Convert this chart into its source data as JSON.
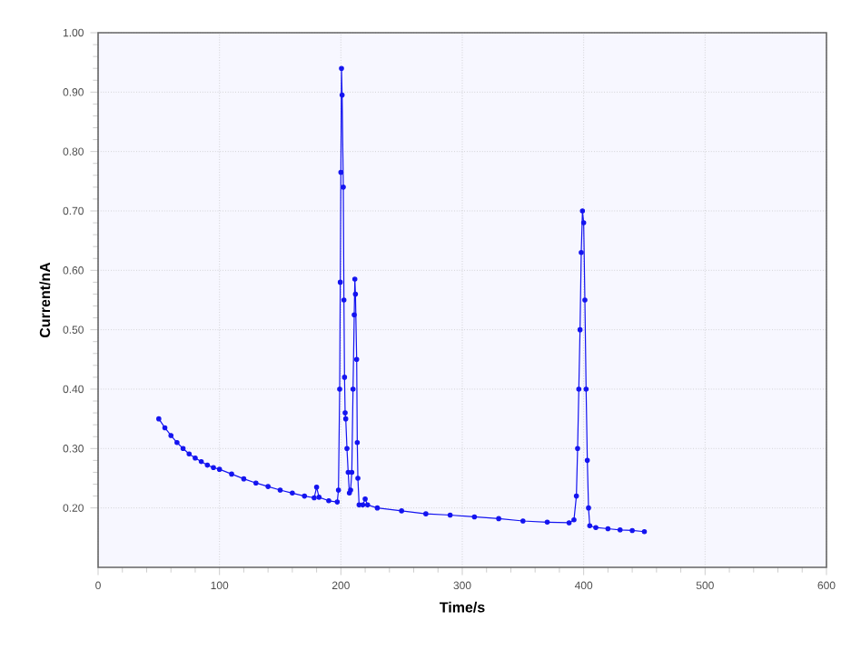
{
  "chart_data": {
    "type": "line",
    "xlabel": "Time/s",
    "ylabel": "Current/nA",
    "xlim": [
      0,
      600
    ],
    "xticks": [
      0,
      100,
      200,
      300,
      400,
      500,
      600
    ],
    "ylim": [
      0.1,
      1.0
    ],
    "yticks": [
      {
        "value": 0.2,
        "label": "0.20"
      },
      {
        "value": 0.3,
        "label": "0.30"
      },
      {
        "value": 0.4,
        "label": "0.40"
      },
      {
        "value": 0.5,
        "label": "0.50"
      },
      {
        "value": 0.6,
        "label": "0.60"
      },
      {
        "value": 0.7,
        "label": "0.70"
      },
      {
        "value": 0.8,
        "label": "0.80"
      },
      {
        "value": 0.9,
        "label": "0.90"
      },
      {
        "value": 1.0,
        "label": "1.00"
      }
    ],
    "grid": true,
    "marker": "circle",
    "line_style": "solid",
    "series": [
      {
        "color": "#1414f0",
        "x": [
          50,
          55,
          60,
          65,
          70,
          75,
          80,
          85,
          90,
          95,
          100,
          110,
          120,
          130,
          140,
          150,
          160,
          170,
          178,
          180,
          182,
          190,
          197,
          198,
          199,
          199.5,
          200,
          200.5,
          201,
          202,
          202.5,
          203,
          203.5,
          204,
          205,
          206,
          207,
          208,
          209,
          210,
          211,
          211.5,
          212,
          213,
          213.5,
          214,
          215,
          218,
          220,
          222,
          230,
          250,
          270,
          290,
          310,
          330,
          350,
          370,
          388,
          392,
          394,
          395,
          396,
          397,
          398,
          399,
          400,
          401,
          402,
          403,
          404,
          405,
          410,
          420,
          430,
          440,
          450
        ],
        "values": [
          0.35,
          0.335,
          0.322,
          0.31,
          0.3,
          0.291,
          0.284,
          0.278,
          0.272,
          0.268,
          0.265,
          0.257,
          0.249,
          0.242,
          0.236,
          0.23,
          0.225,
          0.22,
          0.217,
          0.235,
          0.218,
          0.212,
          0.21,
          0.23,
          0.4,
          0.58,
          0.765,
          0.94,
          0.895,
          0.74,
          0.55,
          0.42,
          0.36,
          0.35,
          0.3,
          0.26,
          0.225,
          0.23,
          0.26,
          0.4,
          0.525,
          0.585,
          0.56,
          0.45,
          0.31,
          0.25,
          0.205,
          0.205,
          0.215,
          0.205,
          0.2,
          0.195,
          0.19,
          0.188,
          0.185,
          0.182,
          0.178,
          0.176,
          0.175,
          0.18,
          0.22,
          0.3,
          0.4,
          0.5,
          0.63,
          0.7,
          0.68,
          0.55,
          0.4,
          0.28,
          0.2,
          0.17,
          0.167,
          0.165,
          0.163,
          0.162,
          0.16
        ]
      }
    ]
  }
}
